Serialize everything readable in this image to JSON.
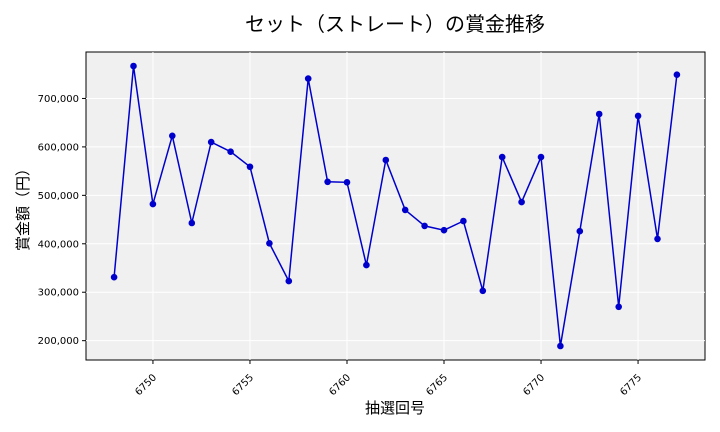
{
  "chart_data": {
    "type": "line",
    "title": "セット（ストレート）の賞金推移",
    "xlabel": "抽選回号",
    "ylabel": "賞金額（円）",
    "x": [
      6748,
      6749,
      6750,
      6751,
      6752,
      6753,
      6754,
      6755,
      6756,
      6757,
      6758,
      6759,
      6760,
      6761,
      6762,
      6763,
      6764,
      6765,
      6766,
      6767,
      6768,
      6769,
      6770,
      6771,
      6772,
      6773,
      6774,
      6775,
      6776,
      6777
    ],
    "series": [
      {
        "values": [
          331000,
          767000,
          482000,
          623000,
          443000,
          610000,
          590000,
          559000,
          401000,
          323000,
          741000,
          528000,
          527000,
          356000,
          573000,
          470000,
          437000,
          428000,
          447000,
          303000,
          579000,
          486000,
          579000,
          189000,
          426000,
          668000,
          270000,
          664000,
          410000,
          749000
        ],
        "color": "#0000cc"
      }
    ],
    "x_ticks": [
      "6750",
      "6755",
      "6760",
      "6765",
      "6770",
      "6775"
    ],
    "y_ticks": [
      "200,000",
      "300,000",
      "400,000",
      "500,000",
      "600,000",
      "700,000"
    ],
    "xlim": [
      6746.55,
      6778.45
    ],
    "ylim": [
      160100,
      795900
    ],
    "grid": true,
    "background": "#f0f0f0"
  }
}
